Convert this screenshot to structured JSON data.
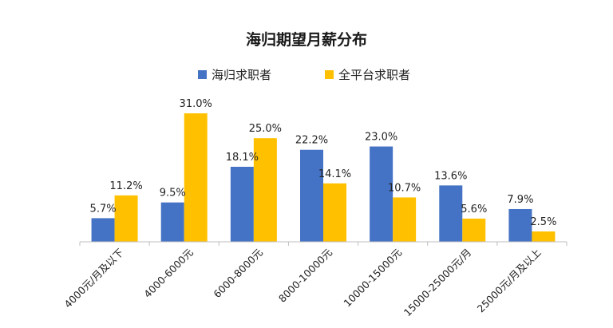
{
  "chart_data": {
    "type": "bar",
    "title": "海归期望月薪分布",
    "categories": [
      "4000元/月及以下",
      "4000-6000元",
      "6000-8000元",
      "8000-10000元",
      "10000-15000元",
      "15000-25000元/月",
      "25000元/月及以上"
    ],
    "series": [
      {
        "name": "海归求职者",
        "values": [
          5.7,
          9.5,
          18.1,
          22.2,
          23.0,
          13.6,
          7.9
        ],
        "color": "#4472C4"
      },
      {
        "name": "全平台求职者",
        "values": [
          11.2,
          31.0,
          25.0,
          14.1,
          10.7,
          5.6,
          2.5
        ],
        "color": "#FFC000"
      }
    ],
    "value_labels": [
      [
        "5.7%",
        "9.5%",
        "18.1%",
        "22.2%",
        "23.0%",
        "13.6%",
        "7.9%"
      ],
      [
        "11.2%",
        "31.0%",
        "25.0%",
        "14.1%",
        "10.7%",
        "5.6%",
        "2.5%"
      ]
    ],
    "unit": "%",
    "ylim": [
      0,
      31
    ],
    "grid": false,
    "legend_position": "top"
  }
}
